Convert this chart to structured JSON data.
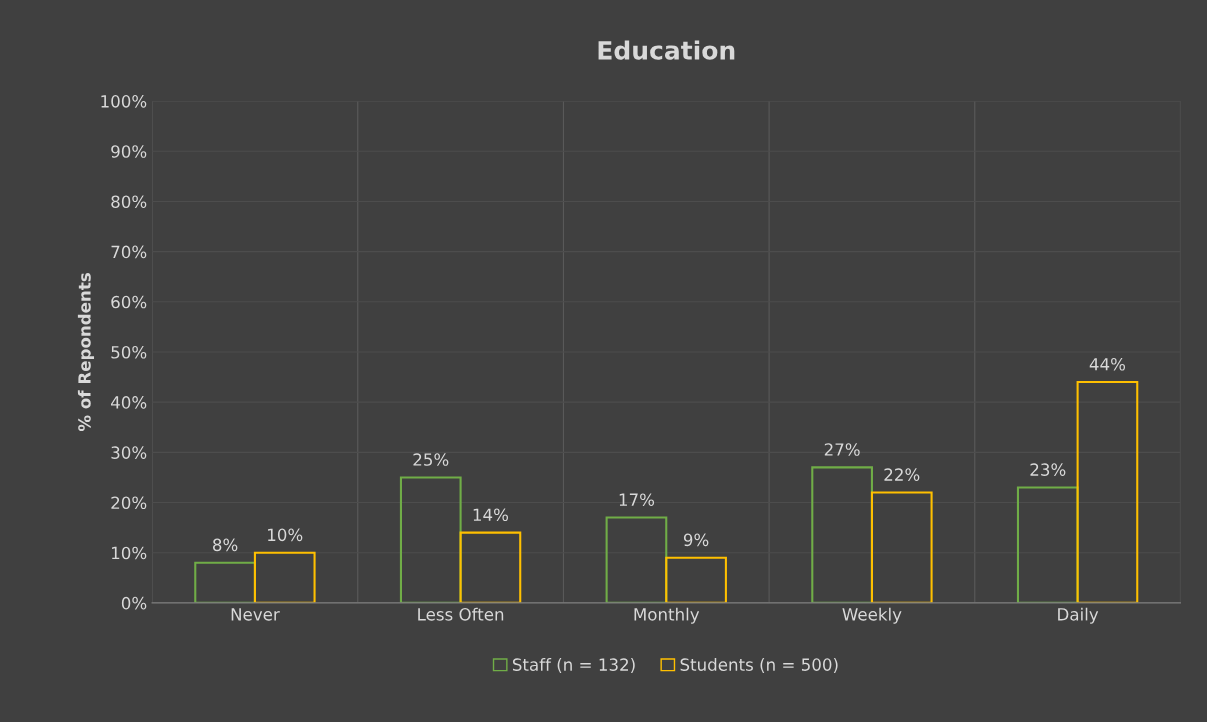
{
  "chart_data": {
    "type": "bar",
    "title": "Education",
    "ylabel": "% of Repondents",
    "categories": [
      "Never",
      "Less Often",
      "Monthly",
      "Weekly",
      "Daily"
    ],
    "series": [
      {
        "name": "Staff (n = 132)",
        "color": "#70ad47",
        "values": [
          8,
          25,
          17,
          27,
          23
        ],
        "value_labels": [
          "8%",
          "25%",
          "17%",
          "27%",
          "23%"
        ]
      },
      {
        "name": "Students (n = 500)",
        "color": "#ffc000",
        "values": [
          10,
          14,
          9,
          22,
          44
        ],
        "value_labels": [
          "10%",
          "14%",
          "9%",
          "22%",
          "44%"
        ]
      }
    ],
    "ylim": [
      0,
      100
    ],
    "yticks": [
      {
        "value": 0,
        "label": "0%"
      },
      {
        "value": 10,
        "label": "10%"
      },
      {
        "value": 20,
        "label": "20%"
      },
      {
        "value": 30,
        "label": "30%"
      },
      {
        "value": 40,
        "label": "40%"
      },
      {
        "value": 50,
        "label": "50%"
      },
      {
        "value": 60,
        "label": "60%"
      },
      {
        "value": 70,
        "label": "70%"
      },
      {
        "value": 80,
        "label": "80%"
      },
      {
        "value": 90,
        "label": "90%"
      },
      {
        "value": 100,
        "label": "100%"
      }
    ],
    "grid": true,
    "legend": "bottom"
  }
}
